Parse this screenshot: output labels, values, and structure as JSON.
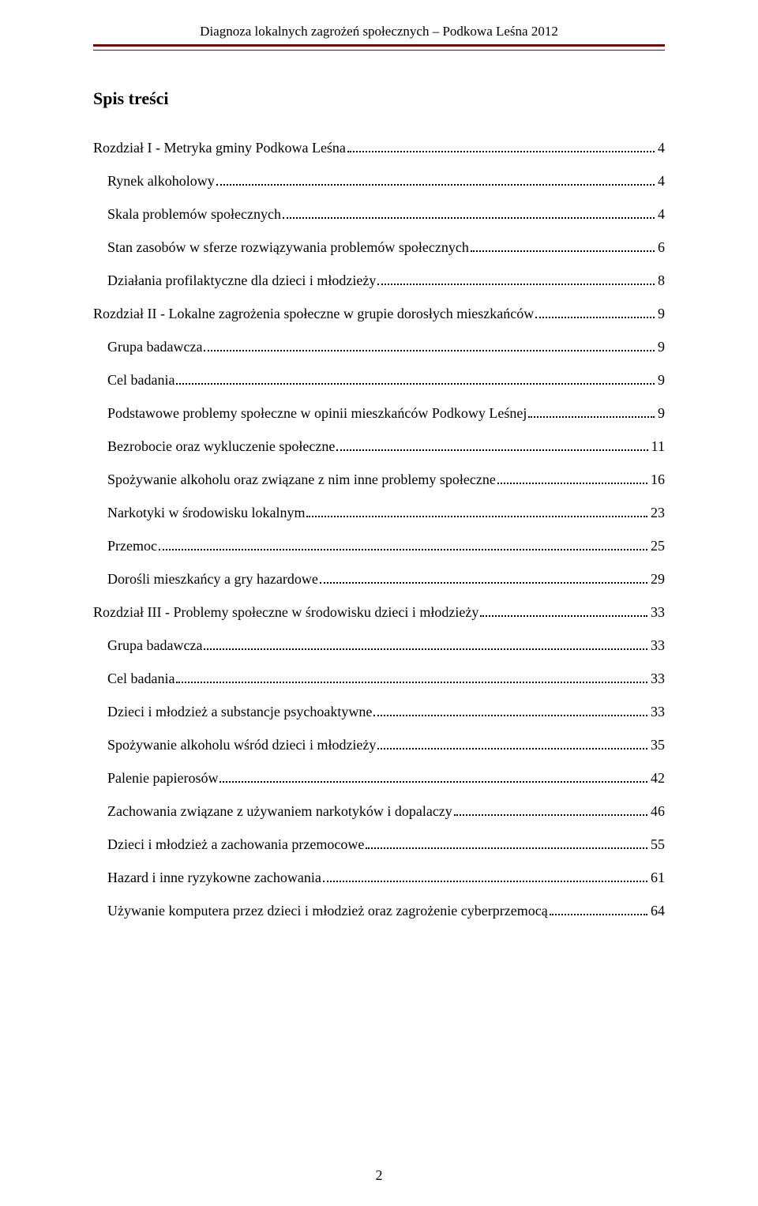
{
  "header": {
    "running_title": "Diagnoza lokalnych zagrożeń społecznych – Podkowa Leśna 2012"
  },
  "colors": {
    "rule": "#8a0000",
    "text": "#000000",
    "background": "#ffffff"
  },
  "toc_title": "Spis treści",
  "page_number": "2",
  "toc": [
    {
      "level": 0,
      "label": "Rozdział I - Metryka gminy Podkowa Leśna",
      "page": "4"
    },
    {
      "level": 1,
      "label": "Rynek alkoholowy",
      "page": "4"
    },
    {
      "level": 1,
      "label": "Skala problemów społecznych",
      "page": "4"
    },
    {
      "level": 1,
      "label": "Stan zasobów w sferze rozwiązywania problemów społecznych",
      "page": "6"
    },
    {
      "level": 1,
      "label": "Działania profilaktyczne dla dzieci i młodzieży",
      "page": "8"
    },
    {
      "level": 0,
      "label": "Rozdział II - Lokalne zagrożenia społeczne w grupie dorosłych mieszkańców",
      "page": "9"
    },
    {
      "level": 1,
      "label": "Grupa badawcza",
      "page": "9"
    },
    {
      "level": 1,
      "label": "Cel badania",
      "page": "9"
    },
    {
      "level": 1,
      "label": "Podstawowe problemy społeczne w opinii mieszkańców Podkowy Leśnej",
      "page": "9"
    },
    {
      "level": 1,
      "label": "Bezrobocie oraz wykluczenie społeczne",
      "page": "11"
    },
    {
      "level": 1,
      "label": "Spożywanie alkoholu oraz związane z nim inne problemy społeczne",
      "page": "16"
    },
    {
      "level": 1,
      "label": "Narkotyki w środowisku lokalnym",
      "page": "23"
    },
    {
      "level": 1,
      "label": "Przemoc",
      "page": "25"
    },
    {
      "level": 1,
      "label": "Dorośli mieszkańcy a gry hazardowe",
      "page": "29"
    },
    {
      "level": 0,
      "label": "Rozdział III - Problemy społeczne w środowisku dzieci i młodzieży",
      "page": "33"
    },
    {
      "level": 1,
      "label": "Grupa badawcza",
      "page": "33"
    },
    {
      "level": 1,
      "label": "Cel badania",
      "page": "33"
    },
    {
      "level": 1,
      "label": "Dzieci i młodzież a substancje psychoaktywne",
      "page": "33"
    },
    {
      "level": 1,
      "label": "Spożywanie alkoholu wśród dzieci i młodzieży",
      "page": "35"
    },
    {
      "level": 1,
      "label": "Palenie papierosów",
      "page": "42"
    },
    {
      "level": 1,
      "label": "Zachowania związane z używaniem narkotyków i dopalaczy",
      "page": "46"
    },
    {
      "level": 1,
      "label": "Dzieci i młodzież a zachowania przemocowe",
      "page": "55"
    },
    {
      "level": 1,
      "label": "Hazard i inne ryzykowne zachowania",
      "page": "61"
    },
    {
      "level": 1,
      "label": "Używanie komputera przez dzieci i młodzież oraz zagrożenie cyberprzemocą",
      "page": "64"
    }
  ]
}
